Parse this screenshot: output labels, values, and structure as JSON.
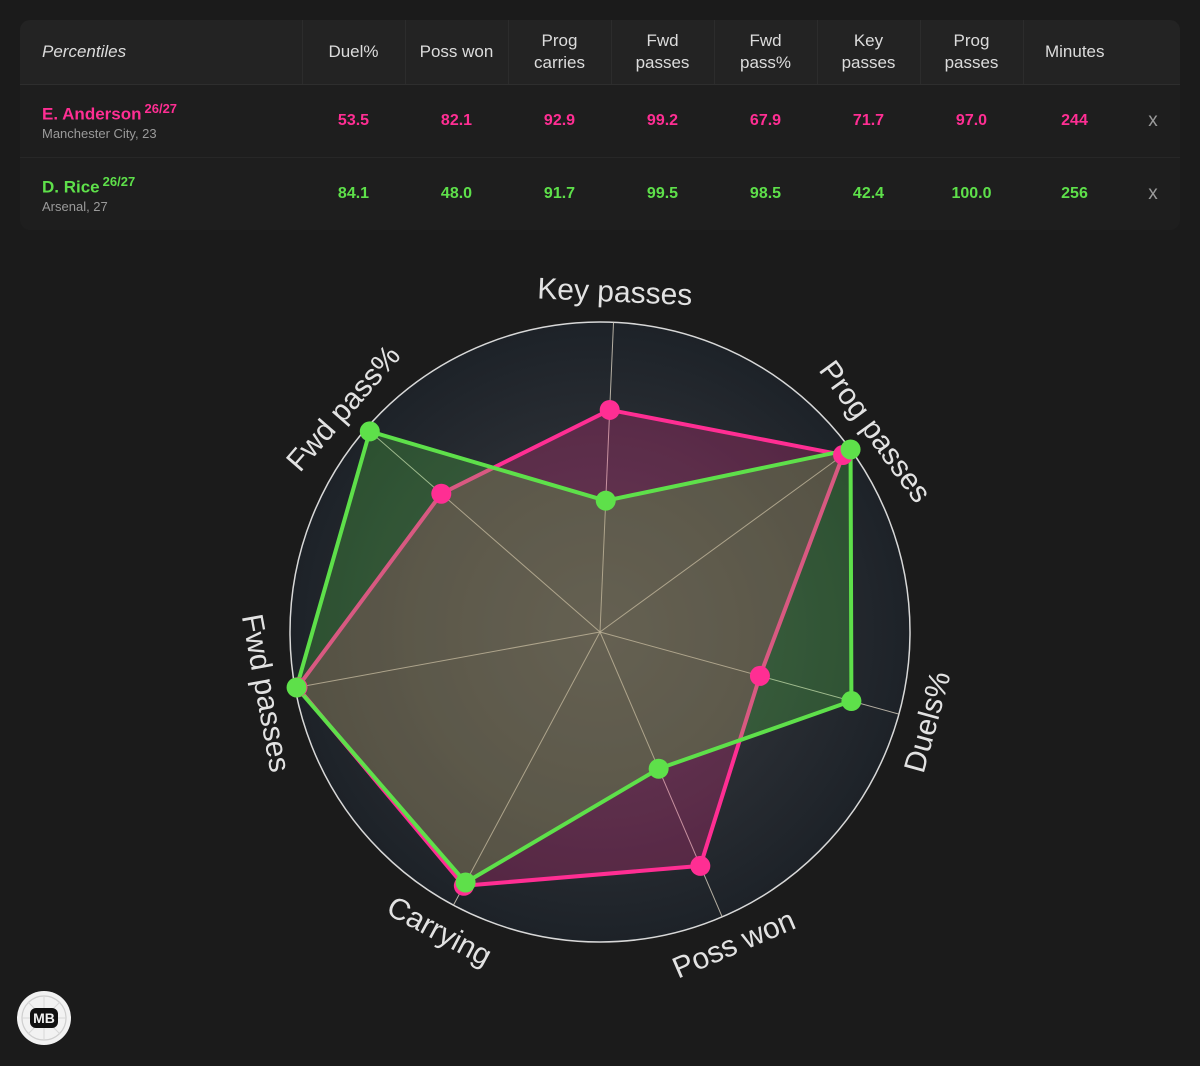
{
  "table": {
    "label_header": "Percentiles",
    "columns": [
      {
        "line1": "Duel%",
        "line2": ""
      },
      {
        "line1": "Poss won",
        "line2": ""
      },
      {
        "line1": "Prog",
        "line2": "carries"
      },
      {
        "line1": "Fwd",
        "line2": "passes"
      },
      {
        "line1": "Fwd",
        "line2": "pass%"
      },
      {
        "line1": "Key",
        "line2": "passes"
      },
      {
        "line1": "Prog",
        "line2": "passes"
      },
      {
        "line1": "Minutes",
        "line2": ""
      }
    ],
    "remove_label": "x",
    "players": [
      {
        "name": "E. Anderson",
        "season": "26/27",
        "sub": "Manchester City, 23",
        "color": "#ff2e93",
        "values": [
          "53.5",
          "82.1",
          "92.9",
          "99.2",
          "67.9",
          "71.7",
          "97.0",
          "244"
        ]
      },
      {
        "name": "D. Rice",
        "season": "26/27",
        "sub": "Arsenal, 27",
        "color": "#5ee04a",
        "values": [
          "84.1",
          "48.0",
          "91.7",
          "99.5",
          "98.5",
          "42.4",
          "100.0",
          "256"
        ]
      }
    ]
  },
  "chart_data": {
    "type": "radar",
    "axes": [
      "Key passes",
      "Prog passes",
      "Duels%",
      "Poss won",
      "Carrying",
      "Fwd passes",
      "Fwd pass%"
    ],
    "range": [
      0,
      100
    ],
    "series": [
      {
        "name": "E. Anderson",
        "color": "#ff2e93",
        "values": [
          71.7,
          97.0,
          53.5,
          82.1,
          92.9,
          99.2,
          67.9
        ]
      },
      {
        "name": "D. Rice",
        "color": "#5ee04a",
        "values": [
          42.4,
          100.0,
          84.1,
          48.0,
          91.7,
          99.5,
          98.5
        ]
      }
    ]
  },
  "logo": {
    "text": "MB"
  }
}
